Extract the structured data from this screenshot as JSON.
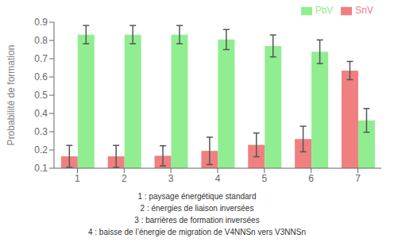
{
  "chart_data": {
    "type": "bar",
    "categories": [
      1,
      2,
      3,
      4,
      5,
      6,
      7
    ],
    "series": [
      {
        "name": "SnV",
        "color": "#f08080",
        "values": [
          0.165,
          0.165,
          0.168,
          0.195,
          0.228,
          0.26,
          0.635
        ],
        "errors": [
          0.06,
          0.06,
          0.055,
          0.075,
          0.065,
          0.07,
          0.05
        ]
      },
      {
        "name": "PbV",
        "color": "#90ee90",
        "values": [
          0.832,
          0.832,
          0.832,
          0.805,
          0.77,
          0.738,
          0.362
        ],
        "errors": [
          0.05,
          0.05,
          0.05,
          0.055,
          0.06,
          0.065,
          0.065
        ]
      }
    ],
    "ylabel": "Probabilité de formation",
    "ylim": [
      0.1,
      0.9
    ],
    "yticks": [
      0.1,
      0.2,
      0.3,
      0.4,
      0.5,
      0.6,
      0.7,
      0.8,
      0.9
    ],
    "annotations": [
      "1 : paysage énergétique standard",
      "2 : énergies de liaison inversées",
      "3 : barrières de formation inversées",
      "4 : baisse de l’énergie de migration de V4NNSn vers V3NNSn"
    ],
    "legend": "upper right",
    "grid": false
  }
}
